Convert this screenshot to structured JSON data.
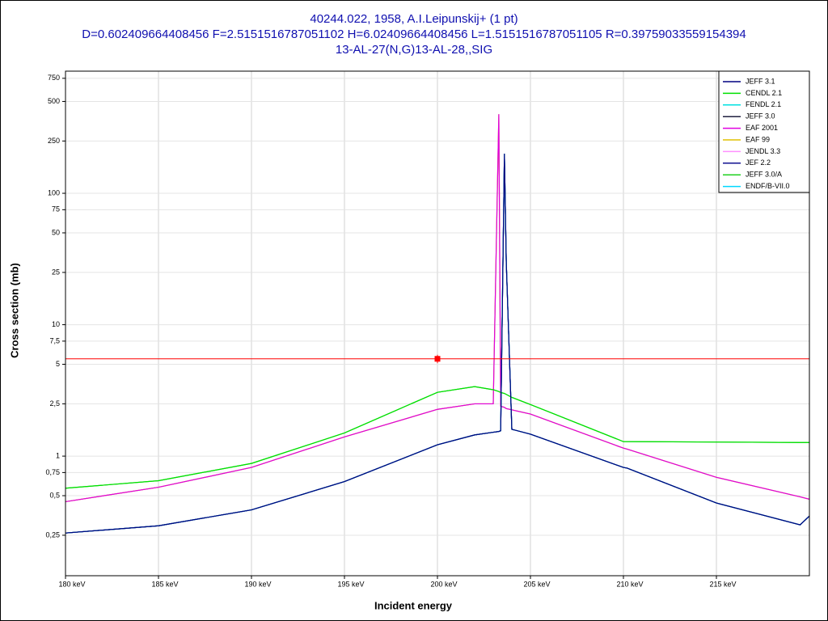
{
  "chart_data": {
    "type": "line",
    "title_lines": [
      "40244.022, 1958, A.I.Leipunskij+ (1 pt)",
      "D=0.602409664408456 F=2.5151516787051102 H=6.02409664408456 L=1.5151516787051105 R=0.39759033559154394",
      "13-AL-27(N,G)13-AL-28,,SIG"
    ],
    "xlabel": "Incident energy",
    "ylabel": "Cross section (mb)",
    "log_y": true,
    "grid": true,
    "legend": "upper right",
    "xlim": [
      180,
      220
    ],
    "ylim": [
      0.123,
      850
    ],
    "xticks": [
      {
        "value": 180,
        "label": "180 keV"
      },
      {
        "value": 185,
        "label": "185 keV"
      },
      {
        "value": 190,
        "label": "190 keV"
      },
      {
        "value": 195,
        "label": "195 keV"
      },
      {
        "value": 200,
        "label": "200 keV"
      },
      {
        "value": 205,
        "label": "205 keV"
      },
      {
        "value": 210,
        "label": "210 keV"
      },
      {
        "value": 215,
        "label": "215 keV"
      }
    ],
    "yticks": [
      {
        "value": 0.25,
        "label": "0,25"
      },
      {
        "value": 0.5,
        "label": "0,5"
      },
      {
        "value": 0.75,
        "label": "0,75"
      },
      1,
      {
        "value": 2.5,
        "label": "2,5"
      },
      5,
      {
        "value": 7.5,
        "label": "7,5"
      },
      10,
      25,
      50,
      75,
      100,
      250,
      500,
      750
    ],
    "x": [
      180,
      185,
      190,
      195,
      200,
      202,
      203,
      203.3,
      203.4,
      203.6,
      203.7,
      204,
      205,
      210,
      210.2,
      215,
      219.5,
      220
    ],
    "series": [
      {
        "name": "JEFF 3.1",
        "color": "#000080",
        "values": [
          0.26,
          0.295,
          0.39,
          0.64,
          1.22,
          1.45,
          1.52,
          1.54,
          1.56,
          200,
          30,
          1.6,
          1.47,
          0.82,
          0.81,
          0.44,
          0.3,
          0.35
        ]
      },
      {
        "name": "CENDL 2.1",
        "color": "#00e000",
        "values": [
          0.57,
          0.65,
          0.88,
          1.5,
          3.06,
          3.38,
          3.2,
          3.1,
          3.05,
          3.0,
          2.95,
          2.8,
          2.47,
          1.29,
          1.29,
          1.28,
          1.27,
          1.27
        ]
      },
      {
        "name": "FENDL 2.1",
        "color": "#00e0e0",
        "values": [
          0.26,
          0.295,
          0.39,
          0.64,
          1.22,
          1.45,
          1.52,
          1.54,
          1.56,
          200,
          30,
          1.6,
          1.47,
          0.82,
          0.81,
          0.44,
          0.3,
          0.35
        ]
      },
      {
        "name": "JEFF 3.0",
        "color": "#202040",
        "values": [
          0.26,
          0.295,
          0.39,
          0.64,
          1.22,
          1.45,
          1.52,
          1.54,
          1.56,
          200,
          30,
          1.6,
          1.47,
          0.82,
          0.81,
          0.44,
          0.3,
          0.35
        ]
      },
      {
        "name": "EAF 2001",
        "color": "#e000e0",
        "values": [
          0.45,
          0.58,
          0.82,
          1.4,
          2.27,
          2.5,
          2.5,
          400,
          2.4,
          2.35,
          2.3,
          2.25,
          2.09,
          1.15,
          1.13,
          0.69,
          0.49,
          0.47
        ]
      },
      {
        "name": "EAF 99",
        "color": "#e0c000",
        "values": [
          0.45,
          0.58,
          0.82,
          1.4,
          2.27,
          2.5,
          2.5,
          400,
          2.4,
          2.35,
          2.3,
          2.25,
          2.09,
          1.15,
          1.13,
          0.69,
          0.49,
          0.47
        ]
      },
      {
        "name": "JENDL 3.3",
        "color": "#ff90ff",
        "values": [
          0.45,
          0.58,
          0.82,
          1.4,
          2.27,
          2.5,
          2.5,
          400,
          2.4,
          2.35,
          2.3,
          2.25,
          2.09,
          1.15,
          1.13,
          0.69,
          0.49,
          0.47
        ]
      },
      {
        "name": "JEF 2.2",
        "color": "#101090",
        "values": [
          0.26,
          0.295,
          0.39,
          0.64,
          1.22,
          1.45,
          1.52,
          1.54,
          1.56,
          200,
          30,
          1.6,
          1.47,
          0.82,
          0.81,
          0.44,
          0.3,
          0.35
        ]
      },
      {
        "name": "JEFF 3.0/A",
        "color": "#20d020",
        "values": [
          0.57,
          0.65,
          0.88,
          1.5,
          3.06,
          3.38,
          3.2,
          3.1,
          3.05,
          3.0,
          2.95,
          2.8,
          2.47,
          1.29,
          1.29,
          1.28,
          1.27,
          1.27
        ]
      },
      {
        "name": "ENDF/B-VII.0",
        "color": "#00d8ff",
        "values": [
          0.26,
          0.295,
          0.39,
          0.64,
          1.22,
          1.45,
          1.52,
          1.54,
          1.56,
          200,
          30,
          1.6,
          1.47,
          0.82,
          0.81,
          0.44,
          0.3,
          0.35
        ]
      }
    ],
    "experiment": {
      "color": "#ff0000",
      "x": [
        200
      ],
      "values": [
        5.5
      ],
      "errors": [
        0.4
      ]
    }
  }
}
